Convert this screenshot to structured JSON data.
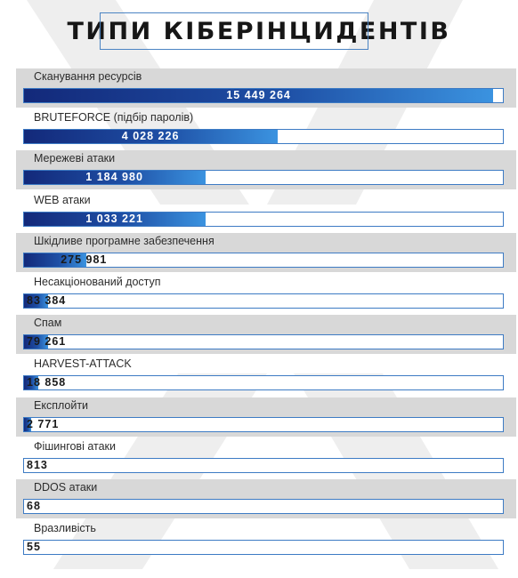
{
  "chart_data": {
    "type": "bar",
    "title": "ТИПИ КІБЕРІНЦИДЕНТІВ",
    "orientation": "horizontal",
    "categories": [
      "Сканування ресурсів",
      "BRUTEFORCE (підбір паролів)",
      "Мережеві атаки",
      "WEB атаки",
      "Шкідливе програмне забезпечення",
      "Несакціонований доступ",
      "Спам",
      "HARVEST-ATTACK",
      "Експлойти",
      "Фішингові атаки",
      "DDOS атаки",
      "Вразливість"
    ],
    "values": [
      15449264,
      4028226,
      1184980,
      1033221,
      275981,
      83384,
      79261,
      18858,
      2771,
      813,
      68,
      55
    ],
    "value_labels": [
      "15 449 264",
      "4 028 226",
      "1 184 980",
      "1 033 221",
      "275 981",
      "83 384",
      "79 261",
      "18 858",
      "2 771",
      "813",
      "68",
      "55"
    ],
    "bar_fill_fraction": [
      0.98,
      0.53,
      0.38,
      0.38,
      0.13,
      0.05,
      0.05,
      0.03,
      0.015,
      0,
      0,
      0
    ],
    "shaded_rows": [
      true,
      false,
      true,
      false,
      true,
      false,
      true,
      false,
      true,
      false,
      true,
      false
    ],
    "colors": {
      "bar_dark": "#13297a",
      "bar_light": "#3b93e0",
      "track_border": "#3d7bc4",
      "row_shade": "#d8d8d8",
      "value_on_bar": "#ffffff",
      "value_off_bar": "#1a1a1a"
    }
  }
}
